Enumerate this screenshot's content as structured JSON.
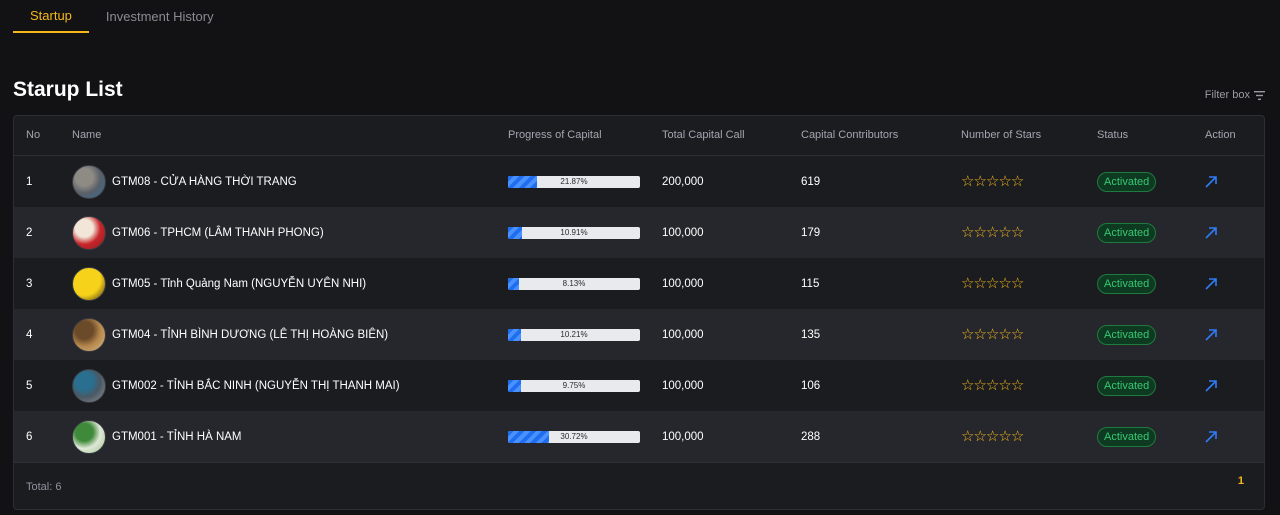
{
  "tabs": [
    {
      "label": "Startup",
      "active": true
    },
    {
      "label": "Investment History",
      "active": false
    }
  ],
  "page_title": "Starup List",
  "filter_label": "Filter box",
  "columns": {
    "no": "No",
    "name": "Name",
    "progress": "Progress of Capital",
    "capital_call": "Total Capital Call",
    "contributors": "Capital Contributors",
    "stars": "Number of Stars",
    "status": "Status",
    "action": "Action"
  },
  "rows": [
    {
      "no": "1",
      "name": "GTM08 - CỬA HÀNG THỜI TRANG",
      "progress_label": "21.87%",
      "progress": 21.87,
      "capital_call": "200,000",
      "contributors": "619",
      "stars": 0,
      "status": "Activated",
      "avatar_colors": [
        "#5a5f68",
        "#8e8a84",
        "#2f6c94"
      ]
    },
    {
      "no": "2",
      "name": "GTM06 - TPHCM (LÂM THANH PHONG)",
      "progress_label": "10.91%",
      "progress": 10.91,
      "capital_call": "100,000",
      "contributors": "179",
      "stars": 0,
      "status": "Activated",
      "avatar_colors": [
        "#c8262b",
        "#f2e6d8",
        "#8a1b1f"
      ]
    },
    {
      "no": "3",
      "name": "GTM05 - Tỉnh Quảng Nam (NGUYỄN UYÊN NHI)",
      "progress_label": "8.13%",
      "progress": 8.13,
      "capital_call": "100,000",
      "contributors": "115",
      "stars": 0,
      "status": "Activated",
      "avatar_colors": [
        "#f7d21a",
        "#f7d21a",
        "#3a2c10"
      ]
    },
    {
      "no": "4",
      "name": "GTM04 - TỈNH BÌNH DƯƠNG (LÊ THỊ HOÀNG BIÊN)",
      "progress_label": "10.21%",
      "progress": 10.21,
      "capital_call": "100,000",
      "contributors": "135",
      "stars": 0,
      "status": "Activated",
      "avatar_colors": [
        "#b5874c",
        "#6a4a28",
        "#d7b98a"
      ]
    },
    {
      "no": "5",
      "name": "GTM002 - TỈNH BẮC NINH (NGUYỄN THỊ THANH MAI)",
      "progress_label": "9.75%",
      "progress": 9.75,
      "capital_call": "100,000",
      "contributors": "106",
      "stars": 0,
      "status": "Activated",
      "avatar_colors": [
        "#4b5863",
        "#2a6f8f",
        "#8d949a"
      ]
    },
    {
      "no": "6",
      "name": "GTM001 - TỈNH HÀ NAM",
      "progress_label": "30.72%",
      "progress": 30.72,
      "capital_call": "100,000",
      "contributors": "288",
      "stars": 0,
      "status": "Activated",
      "avatar_colors": [
        "#dfe8d8",
        "#3f8a3a",
        "#9cc28e"
      ]
    }
  ],
  "total_label": "Total: 6",
  "current_page": "1",
  "colors": {
    "accent": "#f5b81c",
    "status_green": "#37c872",
    "link_blue": "#2f7cf6"
  }
}
